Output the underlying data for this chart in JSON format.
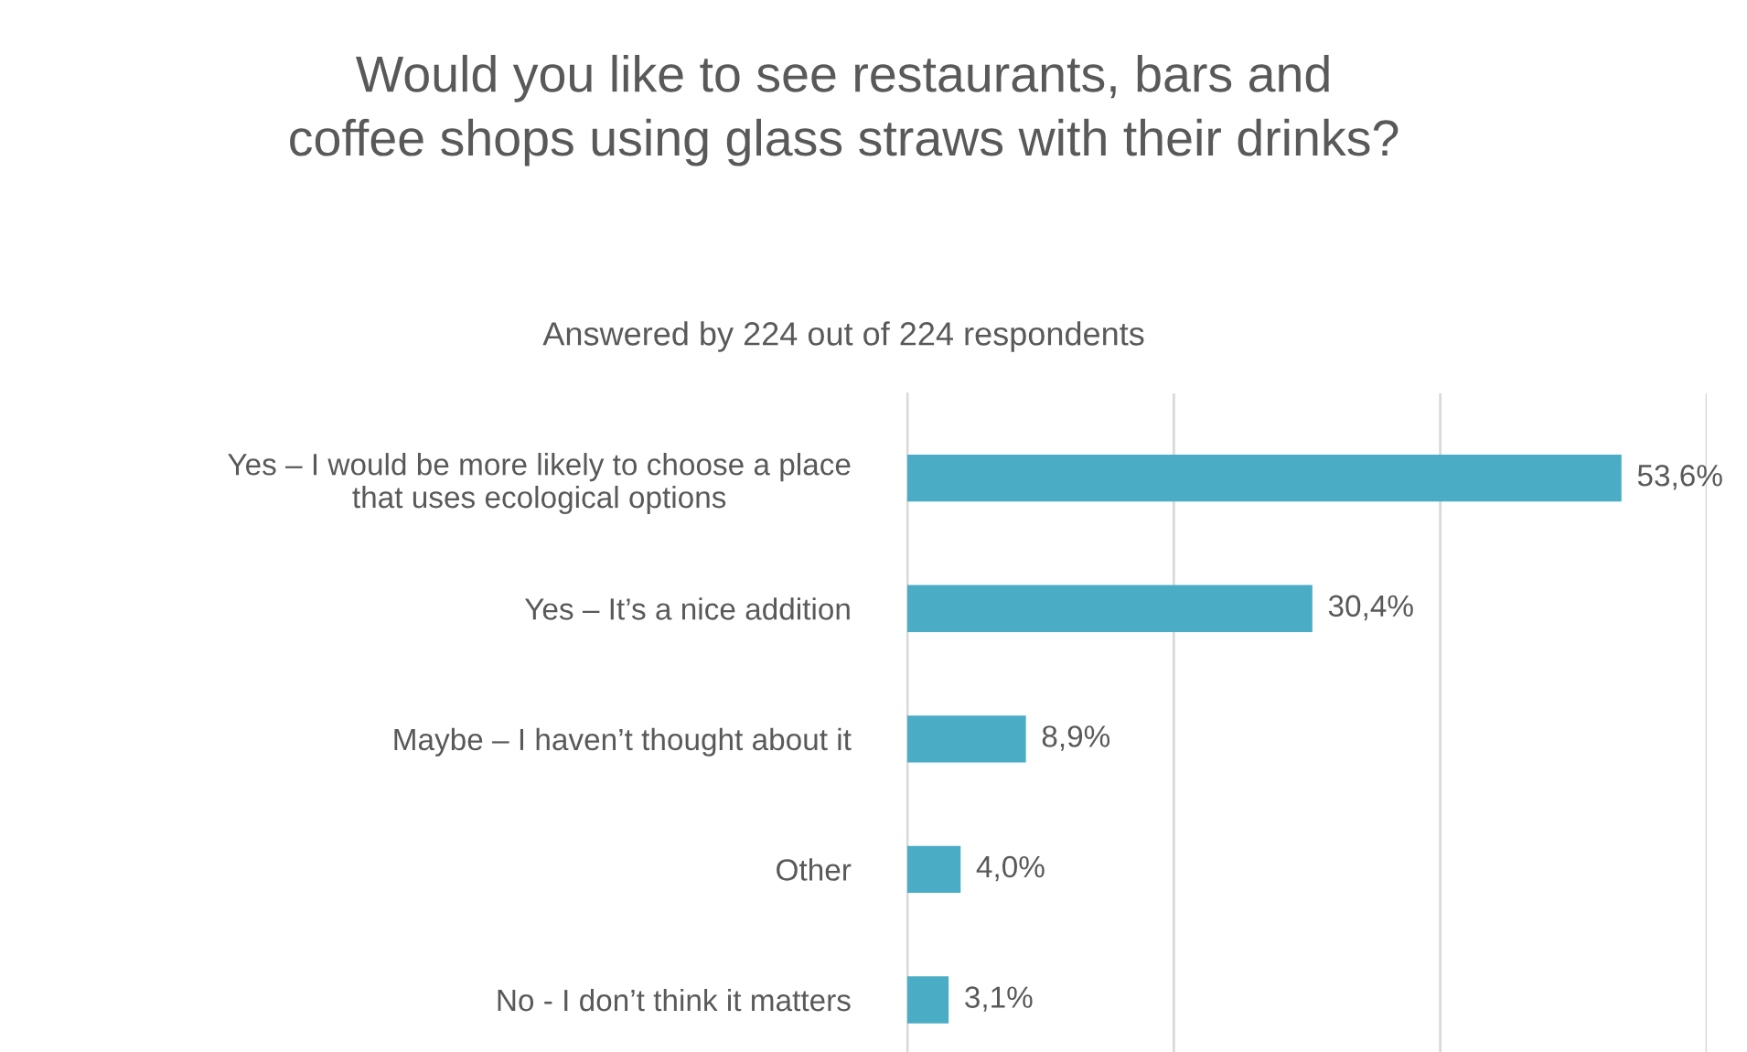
{
  "chart_data": {
    "type": "bar",
    "orientation": "horizontal",
    "title": "Would you like to see restaurants, bars and\ncoffee shops using glass straws with their drinks?",
    "subtitle": "Answered by 224 out of 224 respondents",
    "categories": [
      "Yes – I would be more likely to choose a place\nthat uses ecological options",
      "Yes – It’s a nice addition",
      "Maybe – I haven’t thought about it",
      "Other",
      "No - I don’t think it matters"
    ],
    "values": [
      53.6,
      30.4,
      8.9,
      4.0,
      3.1
    ],
    "value_labels": [
      "53,6%",
      "30,4%",
      "8,9%",
      "4,0%",
      "3,1%"
    ],
    "color": "#4bacc6",
    "xlim": [
      0,
      60
    ],
    "xticks": [
      {
        "value": 0,
        "label": null
      },
      {
        "value": 20,
        "label": null
      },
      {
        "value": 40,
        "label": null
      },
      {
        "value": 60,
        "label": null
      }
    ],
    "grid": "x"
  }
}
